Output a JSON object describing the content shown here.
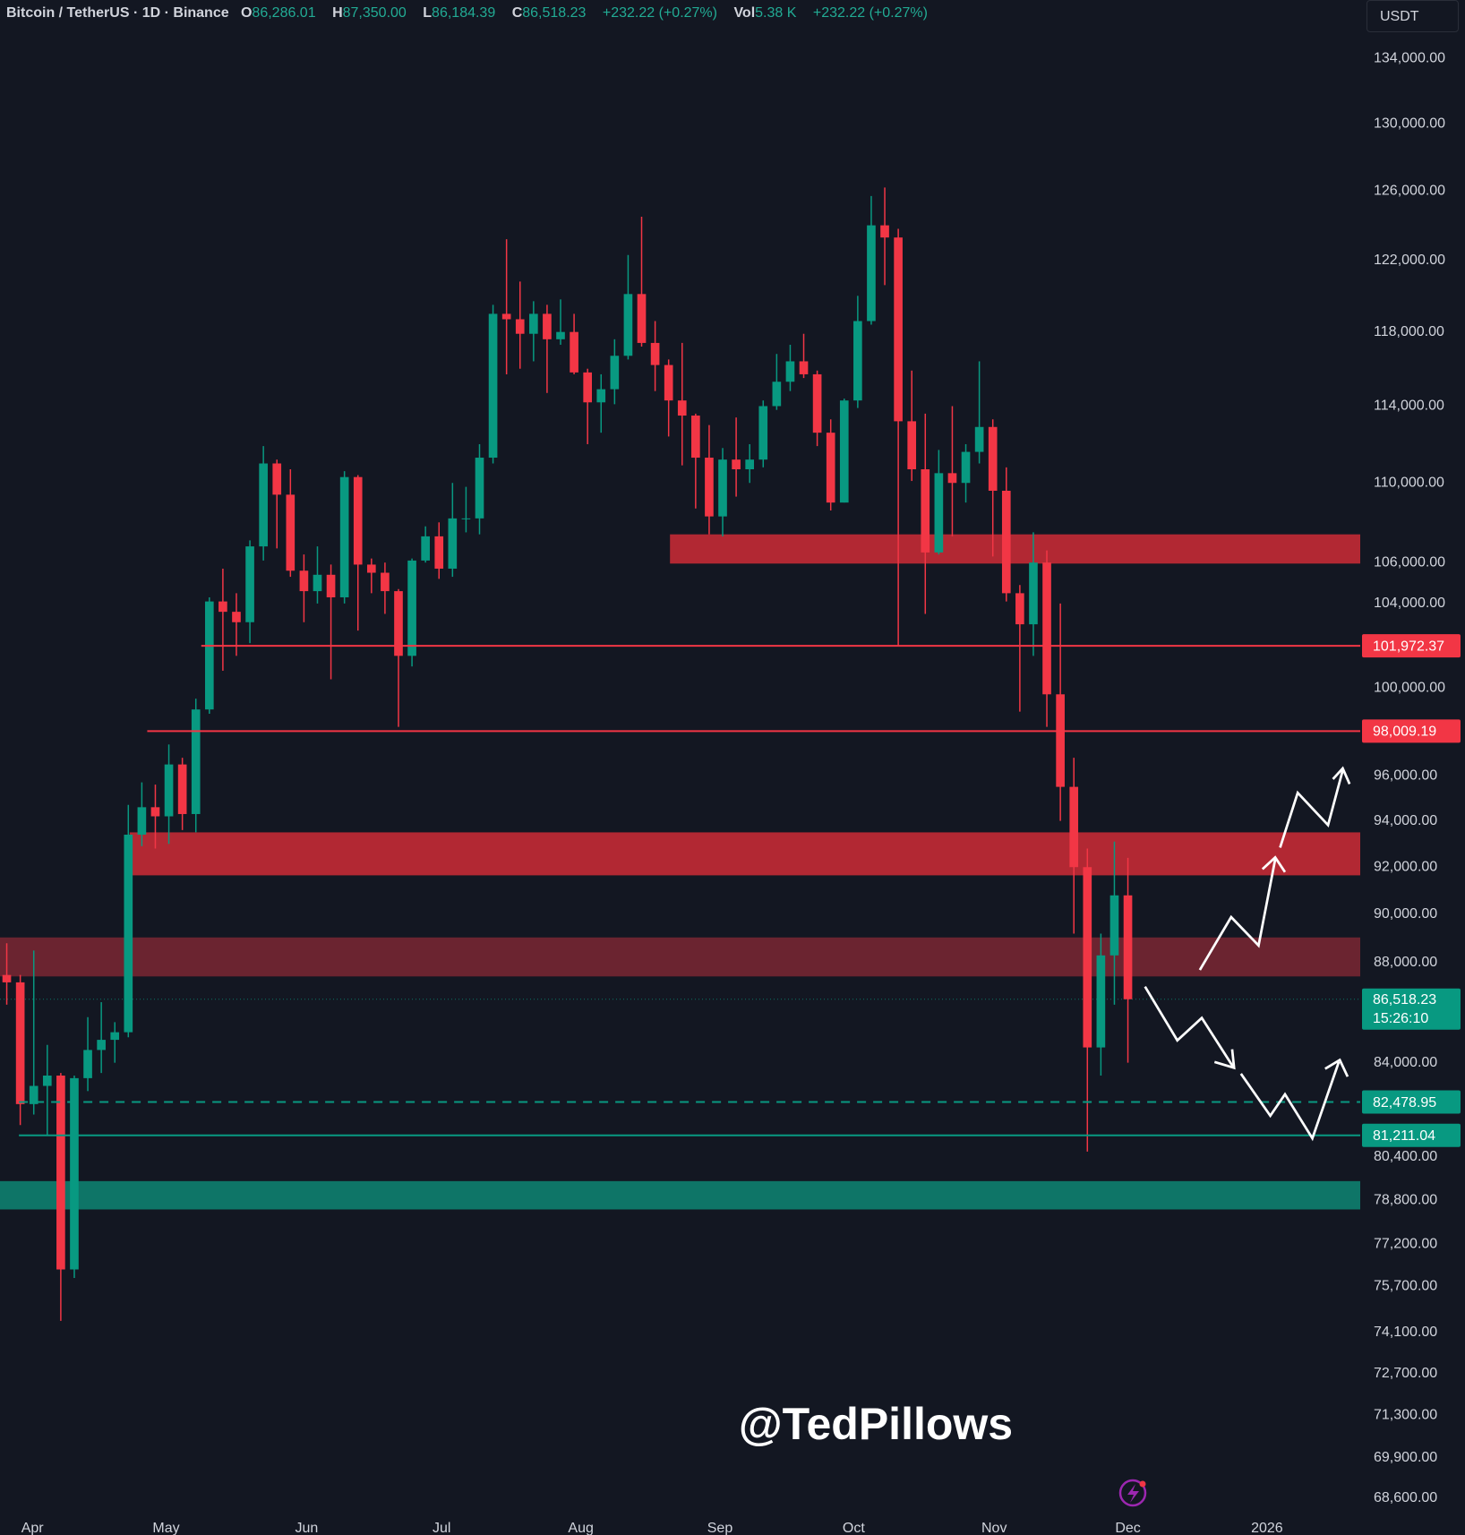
{
  "header": {
    "symbol": "Bitcoin / TetherUS · 1D · Binance",
    "open_label": "O",
    "open": "86,286.01",
    "high_label": "H",
    "high": "87,350.00",
    "low_label": "L",
    "low": "86,184.39",
    "close_label": "C",
    "close": "86,518.23",
    "change": "+232.22 (+0.27%)",
    "vol_label": "Vol",
    "vol": "5.38 K",
    "vol_change": "+232.22 (+0.27%)",
    "currency": "USDT"
  },
  "watermark": "@TedPillows",
  "chart_data": {
    "type": "candlestick",
    "up_color": "#089981",
    "down_color": "#f23645",
    "yscale": "log",
    "grid": false,
    "ylim": [
      68000,
      137700
    ],
    "yticks": [
      {
        "value": 134000,
        "label": "134,000.00"
      },
      {
        "value": 130000,
        "label": "130,000.00"
      },
      {
        "value": 126000,
        "label": "126,000.00"
      },
      {
        "value": 122000,
        "label": "122,000.00"
      },
      {
        "value": 118000,
        "label": "118,000.00"
      },
      {
        "value": 114000,
        "label": "114,000.00"
      },
      {
        "value": 110000,
        "label": "110,000.00"
      },
      {
        "value": 106000,
        "label": "106,000.00"
      },
      {
        "value": 104000,
        "label": "104,000.00"
      },
      {
        "value": 100000,
        "label": "100,000.00"
      },
      {
        "value": 96000,
        "label": "96,000.00"
      },
      {
        "value": 94000,
        "label": "94,000.00"
      },
      {
        "value": 92000,
        "label": "92,000.00"
      },
      {
        "value": 90000,
        "label": "90,000.00"
      },
      {
        "value": 88000,
        "label": "88,000.00"
      },
      {
        "value": 84000,
        "label": "84,000.00"
      },
      {
        "value": 80400,
        "label": "80,400.00"
      },
      {
        "value": 78800,
        "label": "78,800.00"
      },
      {
        "value": 77200,
        "label": "77,200.00"
      },
      {
        "value": 75700,
        "label": "75,700.00"
      },
      {
        "value": 74100,
        "label": "74,100.00"
      },
      {
        "value": 72700,
        "label": "72,700.00"
      },
      {
        "value": 71300,
        "label": "71,300.00"
      },
      {
        "value": 69900,
        "label": "69,900.00"
      },
      {
        "value": 68600,
        "label": "68,600.00"
      }
    ],
    "xlim": [
      -0.5,
      100.2
    ],
    "xticks": [
      {
        "value": 1.9,
        "label": "Apr"
      },
      {
        "value": 11.8,
        "label": "May"
      },
      {
        "value": 22.2,
        "label": "Jun"
      },
      {
        "value": 32.2,
        "label": "Jul"
      },
      {
        "value": 42.5,
        "label": "Aug"
      },
      {
        "value": 52.8,
        "label": "Sep"
      },
      {
        "value": 62.7,
        "label": "Oct"
      },
      {
        "value": 73.1,
        "label": "Nov"
      },
      {
        "value": 83.0,
        "label": "Dec"
      },
      {
        "value": 93.3,
        "label": "2026"
      }
    ],
    "candles": [
      [
        87500,
        88800,
        86300,
        87200
      ],
      [
        87200,
        87500,
        81600,
        82400
      ],
      [
        82400,
        88500,
        82000,
        83100
      ],
      [
        83100,
        84700,
        81200,
        83500
      ],
      [
        83500,
        83600,
        74500,
        76300
      ],
      [
        76300,
        83500,
        76000,
        83400
      ],
      [
        83400,
        85800,
        82900,
        84500
      ],
      [
        84500,
        86400,
        83600,
        84900
      ],
      [
        84900,
        85600,
        84000,
        85200
      ],
      [
        85200,
        94700,
        85000,
        93400
      ],
      [
        93400,
        95700,
        92900,
        94600
      ],
      [
        94600,
        95600,
        92800,
        94200
      ],
      [
        94200,
        97400,
        93000,
        96500
      ],
      [
        96500,
        96800,
        93600,
        94300
      ],
      [
        94300,
        99500,
        93500,
        99000
      ],
      [
        99000,
        104300,
        98800,
        104100
      ],
      [
        104100,
        105700,
        100800,
        103600
      ],
      [
        103600,
        104500,
        101500,
        103100
      ],
      [
        103100,
        107100,
        102100,
        106800
      ],
      [
        106800,
        111900,
        106100,
        111000
      ],
      [
        111000,
        111200,
        106700,
        109400
      ],
      [
        109400,
        110700,
        105300,
        105600
      ],
      [
        105600,
        106400,
        103100,
        104600
      ],
      [
        104600,
        106800,
        104000,
        105400
      ],
      [
        105400,
        105900,
        100400,
        104300
      ],
      [
        104300,
        110600,
        104000,
        110300
      ],
      [
        110300,
        110400,
        102700,
        105900
      ],
      [
        105900,
        106200,
        104500,
        105500
      ],
      [
        105500,
        106000,
        103500,
        104600
      ],
      [
        104600,
        104700,
        98200,
        101500
      ],
      [
        101500,
        106200,
        101000,
        106100
      ],
      [
        106100,
        107800,
        106000,
        107300
      ],
      [
        107300,
        108000,
        105200,
        105700
      ],
      [
        105700,
        110000,
        105300,
        108200
      ],
      [
        108200,
        109800,
        107500,
        108200
      ],
      [
        108200,
        112000,
        107400,
        111300
      ],
      [
        111300,
        119500,
        111000,
        119000
      ],
      [
        119000,
        123200,
        115700,
        118700
      ],
      [
        118700,
        120800,
        116000,
        117900
      ],
      [
        117900,
        119700,
        116400,
        119000
      ],
      [
        119000,
        119500,
        114700,
        117600
      ],
      [
        117600,
        119800,
        117300,
        118000
      ],
      [
        118000,
        119000,
        115700,
        115800
      ],
      [
        115800,
        116000,
        112000,
        114200
      ],
      [
        114200,
        115700,
        112600,
        114900
      ],
      [
        114900,
        117600,
        114100,
        116700
      ],
      [
        116700,
        122300,
        116500,
        120100
      ],
      [
        120100,
        124500,
        117200,
        117400
      ],
      [
        117400,
        118600,
        114800,
        116200
      ],
      [
        116200,
        116500,
        112400,
        114300
      ],
      [
        114300,
        117400,
        110900,
        113500
      ],
      [
        113500,
        113600,
        108700,
        111300
      ],
      [
        111300,
        113000,
        107400,
        108300
      ],
      [
        108300,
        111800,
        107300,
        111200
      ],
      [
        111200,
        113400,
        109300,
        110700
      ],
      [
        110700,
        112000,
        110000,
        111200
      ],
      [
        111200,
        114300,
        110800,
        114000
      ],
      [
        114000,
        116800,
        113800,
        115300
      ],
      [
        115300,
        117300,
        114800,
        116400
      ],
      [
        116400,
        117900,
        115500,
        115700
      ],
      [
        115700,
        115900,
        111900,
        112600
      ],
      [
        112600,
        113300,
        108600,
        109000
      ],
      [
        109000,
        114400,
        109000,
        114300
      ],
      [
        114300,
        120000,
        113900,
        118600
      ],
      [
        118600,
        125700,
        118400,
        124000
      ],
      [
        124000,
        126200,
        120600,
        123300
      ],
      [
        123300,
        123800,
        102000,
        113200
      ],
      [
        113200,
        115900,
        110100,
        110700
      ],
      [
        110700,
        113600,
        103500,
        106500
      ],
      [
        106500,
        111700,
        106400,
        110500
      ],
      [
        110500,
        114000,
        107300,
        110000
      ],
      [
        110000,
        112000,
        109000,
        111600
      ],
      [
        111600,
        116400,
        111000,
        112900
      ],
      [
        112900,
        113300,
        106300,
        109600
      ],
      [
        109600,
        110800,
        104100,
        104500
      ],
      [
        104500,
        104900,
        98900,
        103000
      ],
      [
        103000,
        107500,
        101500,
        106000
      ],
      [
        106000,
        106600,
        98200,
        99700
      ],
      [
        99700,
        104000,
        94000,
        95500
      ],
      [
        95500,
        96800,
        89200,
        92000
      ],
      [
        92000,
        92800,
        80600,
        84600
      ],
      [
        84600,
        89200,
        83500,
        88300
      ],
      [
        88300,
        93100,
        86300,
        90800
      ],
      [
        90800,
        92400,
        84000,
        86518.23
      ]
    ],
    "zones": [
      {
        "low": 105950,
        "high": 107400,
        "start": 49.1,
        "color": "#b22833"
      },
      {
        "low": 91650,
        "high": 93500,
        "start": 9.1,
        "color": "#b22833"
      },
      {
        "low": 87440,
        "high": 89040,
        "start": -0.5,
        "color": "#6b2430"
      },
      {
        "low": 78460,
        "high": 79500,
        "start": -0.5,
        "color": "#0e7567"
      }
    ],
    "price_lines": [
      {
        "value": 101972.37,
        "label": "101,972.37",
        "start": 14.4,
        "color": "#f23645",
        "dashed": false
      },
      {
        "value": 98009.19,
        "label": "98,009.19",
        "start": 10.4,
        "color": "#f23645",
        "dashed": false
      },
      {
        "value": 82478.95,
        "label": "82,478.95",
        "start": 0.9,
        "color": "#089981",
        "dashed": true
      },
      {
        "value": 81211.04,
        "label": "81,211.04",
        "start": 0.9,
        "color": "#089981",
        "dashed": false
      }
    ],
    "last_price": {
      "value": 86518.23,
      "label": "86,518.23",
      "countdown": "15:26:10",
      "color": "#089981"
    }
  }
}
